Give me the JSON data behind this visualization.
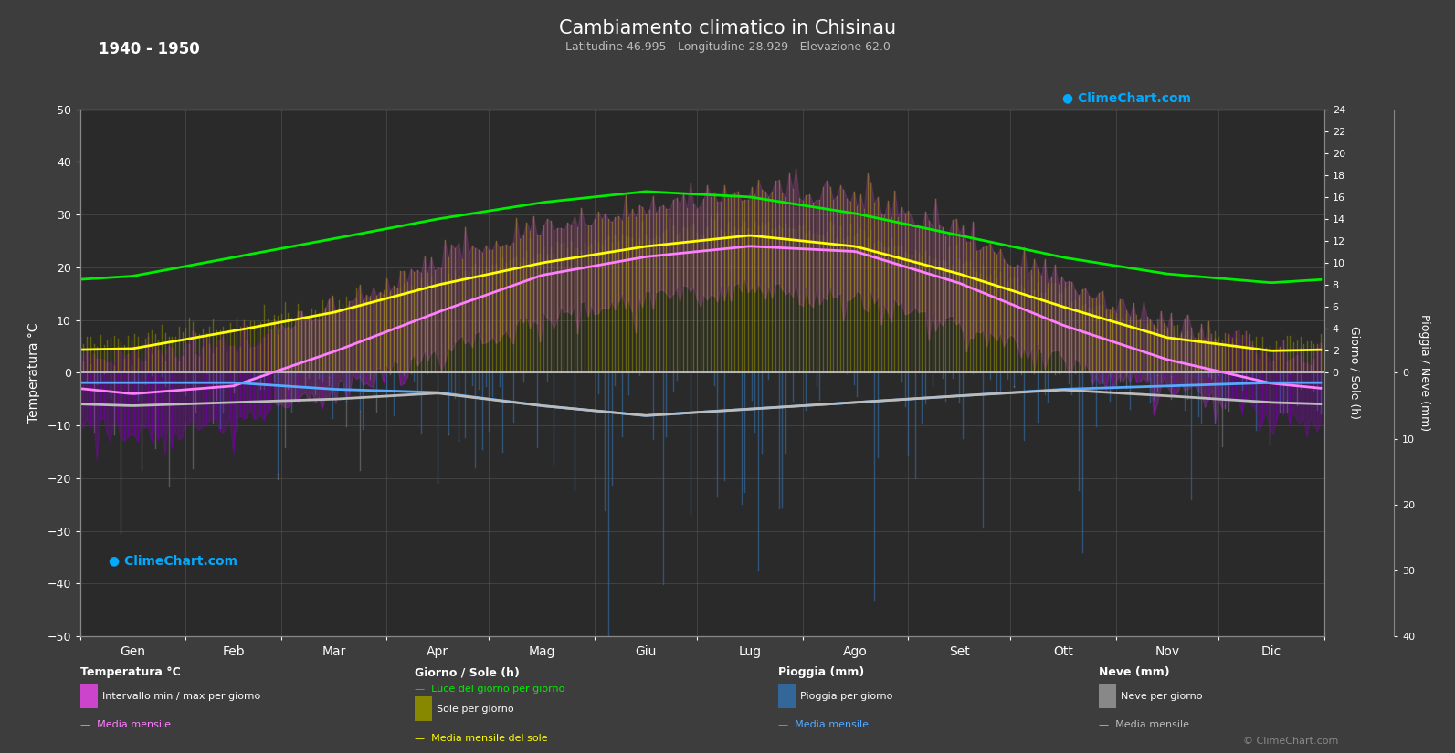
{
  "title": "Cambiamento climatico in Chisinau",
  "subtitle": "Latitudine 46.995 - Longitudine 28.929 - Elevazione 62.0",
  "year_range": "1940 - 1950",
  "bg_color": "#3d3d3d",
  "plot_bg_color": "#2a2a2a",
  "months": [
    "Gen",
    "Feb",
    "Mar",
    "Apr",
    "Mag",
    "Giu",
    "Lug",
    "Ago",
    "Set",
    "Ott",
    "Nov",
    "Dic"
  ],
  "days_per_month": [
    31,
    28,
    31,
    30,
    31,
    30,
    31,
    31,
    30,
    31,
    30,
    31
  ],
  "temp_mean_monthly": [
    -4.0,
    -2.5,
    4.0,
    11.5,
    18.5,
    22.0,
    24.0,
    23.0,
    17.0,
    9.0,
    2.5,
    -2.0
  ],
  "temp_max_monthly": [
    1.0,
    3.5,
    10.5,
    19.0,
    26.0,
    29.5,
    32.5,
    31.5,
    24.5,
    15.5,
    7.0,
    1.5
  ],
  "temp_min_monthly": [
    -9.5,
    -8.0,
    -1.5,
    5.5,
    12.0,
    16.0,
    18.0,
    16.5,
    10.5,
    4.0,
    -1.0,
    -6.0
  ],
  "daylight_monthly": [
    8.8,
    10.5,
    12.2,
    14.0,
    15.5,
    16.5,
    16.0,
    14.5,
    12.5,
    10.5,
    9.0,
    8.2
  ],
  "sunshine_monthly": [
    2.5,
    4.0,
    5.5,
    8.0,
    10.5,
    12.0,
    13.0,
    12.0,
    9.5,
    6.5,
    3.5,
    2.0
  ],
  "sunshine_mean_monthly": [
    2.2,
    3.8,
    5.5,
    8.0,
    10.0,
    11.5,
    12.5,
    11.5,
    9.0,
    6.0,
    3.2,
    2.0
  ],
  "rain_mean_monthly": [
    1.5,
    1.5,
    2.5,
    3.0,
    5.0,
    6.5,
    5.5,
    4.5,
    3.5,
    2.5,
    2.0,
    1.5
  ],
  "snow_mean_monthly": [
    3.5,
    3.0,
    1.5,
    0.1,
    0.0,
    0.0,
    0.0,
    0.0,
    0.0,
    0.1,
    1.5,
    3.0
  ],
  "temp_ylim": [
    -50,
    50
  ],
  "rain_ylim_max": 40,
  "sun_ylim_max": 24,
  "colors": {
    "temp_mean_line": "#ff80ff",
    "daylight_line": "#00ee00",
    "sunshine_mean_line": "#ffff00",
    "rain_mean_line": "#55aaff",
    "snow_mean_line": "#bbbbbb",
    "temp_bar_warm": "#888800",
    "temp_bar_cool": "#660099",
    "sun_bar": "#888800",
    "rain_bar": "#336699",
    "snow_bar": "#888888",
    "zero_line": "#cccccc",
    "grid": "#555555",
    "spine": "#888888"
  }
}
